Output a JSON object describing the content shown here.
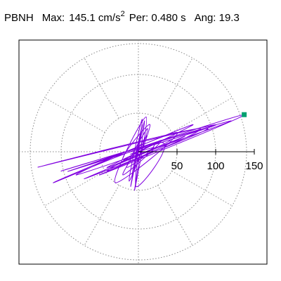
{
  "chart_data": {
    "type": "polar-orbit",
    "station": "PBNH",
    "max_label": "Max:",
    "max_text": "145.1 cm/s",
    "max_unit_exp": "2",
    "period_text": "Per:  0.480 s",
    "angle_text": "Ang:  19.3",
    "rlim": [
      0,
      150
    ],
    "rticks": [
      50,
      100,
      150
    ],
    "rings": [
      50,
      100,
      140
    ],
    "spoke_step_deg": 30,
    "color": "#8000e0",
    "max_color": "#00a070",
    "max_point": {
      "x": 136.9,
      "y": 48.0
    },
    "x": [
      0,
      10,
      -20,
      30,
      -40,
      60,
      -70,
      90,
      -100,
      120,
      -80,
      50,
      -30,
      10,
      -5,
      8,
      -10,
      5,
      -8,
      12,
      -15,
      20,
      -60,
      100,
      -130,
      80,
      -50,
      136.9,
      -90,
      40,
      -20,
      15,
      -12,
      5,
      -3,
      30,
      -110,
      70,
      -40,
      20,
      -10,
      3
    ],
    "y": [
      0,
      20,
      -30,
      15,
      -25,
      20,
      -35,
      30,
      -25,
      40,
      -30,
      25,
      -40,
      45,
      -50,
      40,
      -45,
      35,
      -30,
      30,
      -20,
      10,
      -15,
      35,
      -20,
      30,
      -30,
      48.0,
      -25,
      15,
      -10,
      35,
      -38,
      42,
      -45,
      12,
      -40,
      35,
      -20,
      5,
      -3,
      0
    ]
  }
}
